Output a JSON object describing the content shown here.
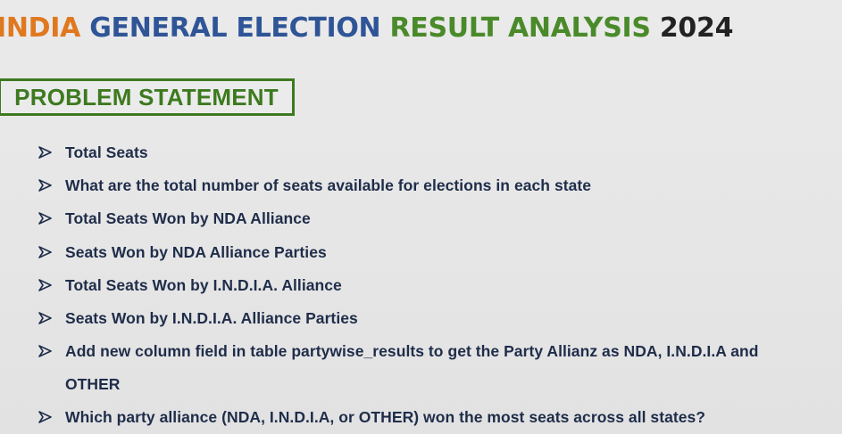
{
  "header": {
    "title_parts": [
      {
        "text": "INDIA ",
        "color": "#e0781f"
      },
      {
        "text": "GENERAL ELECTION ",
        "color": "#2f5597"
      },
      {
        "text": "RESULT ANALYSIS ",
        "color": "#4a8a2a"
      },
      {
        "text": "2024",
        "color": "#222222"
      }
    ]
  },
  "section": {
    "label": "PROBLEM STATEMENT",
    "accent_color": "#3d7a1f"
  },
  "bullets": {
    "icon": "arrow-bullet-icon",
    "text_color": "#1f2d4a",
    "items": [
      "Total Seats",
      "What are the total number of seats available for elections in each state",
      "Total Seats Won by NDA Alliance",
      "Seats Won by NDA Alliance Parties",
      "Total Seats Won by I.N.D.I.A. Alliance",
      "Seats Won by I.N.D.I.A. Alliance Parties",
      "Add new column field in table partywise_results to get the Party Allianz as NDA, I.N.D.I.A and",
      "OTHER",
      "Which party alliance (NDA, I.N.D.I.A, or OTHER) won the most seats across all states?"
    ]
  }
}
